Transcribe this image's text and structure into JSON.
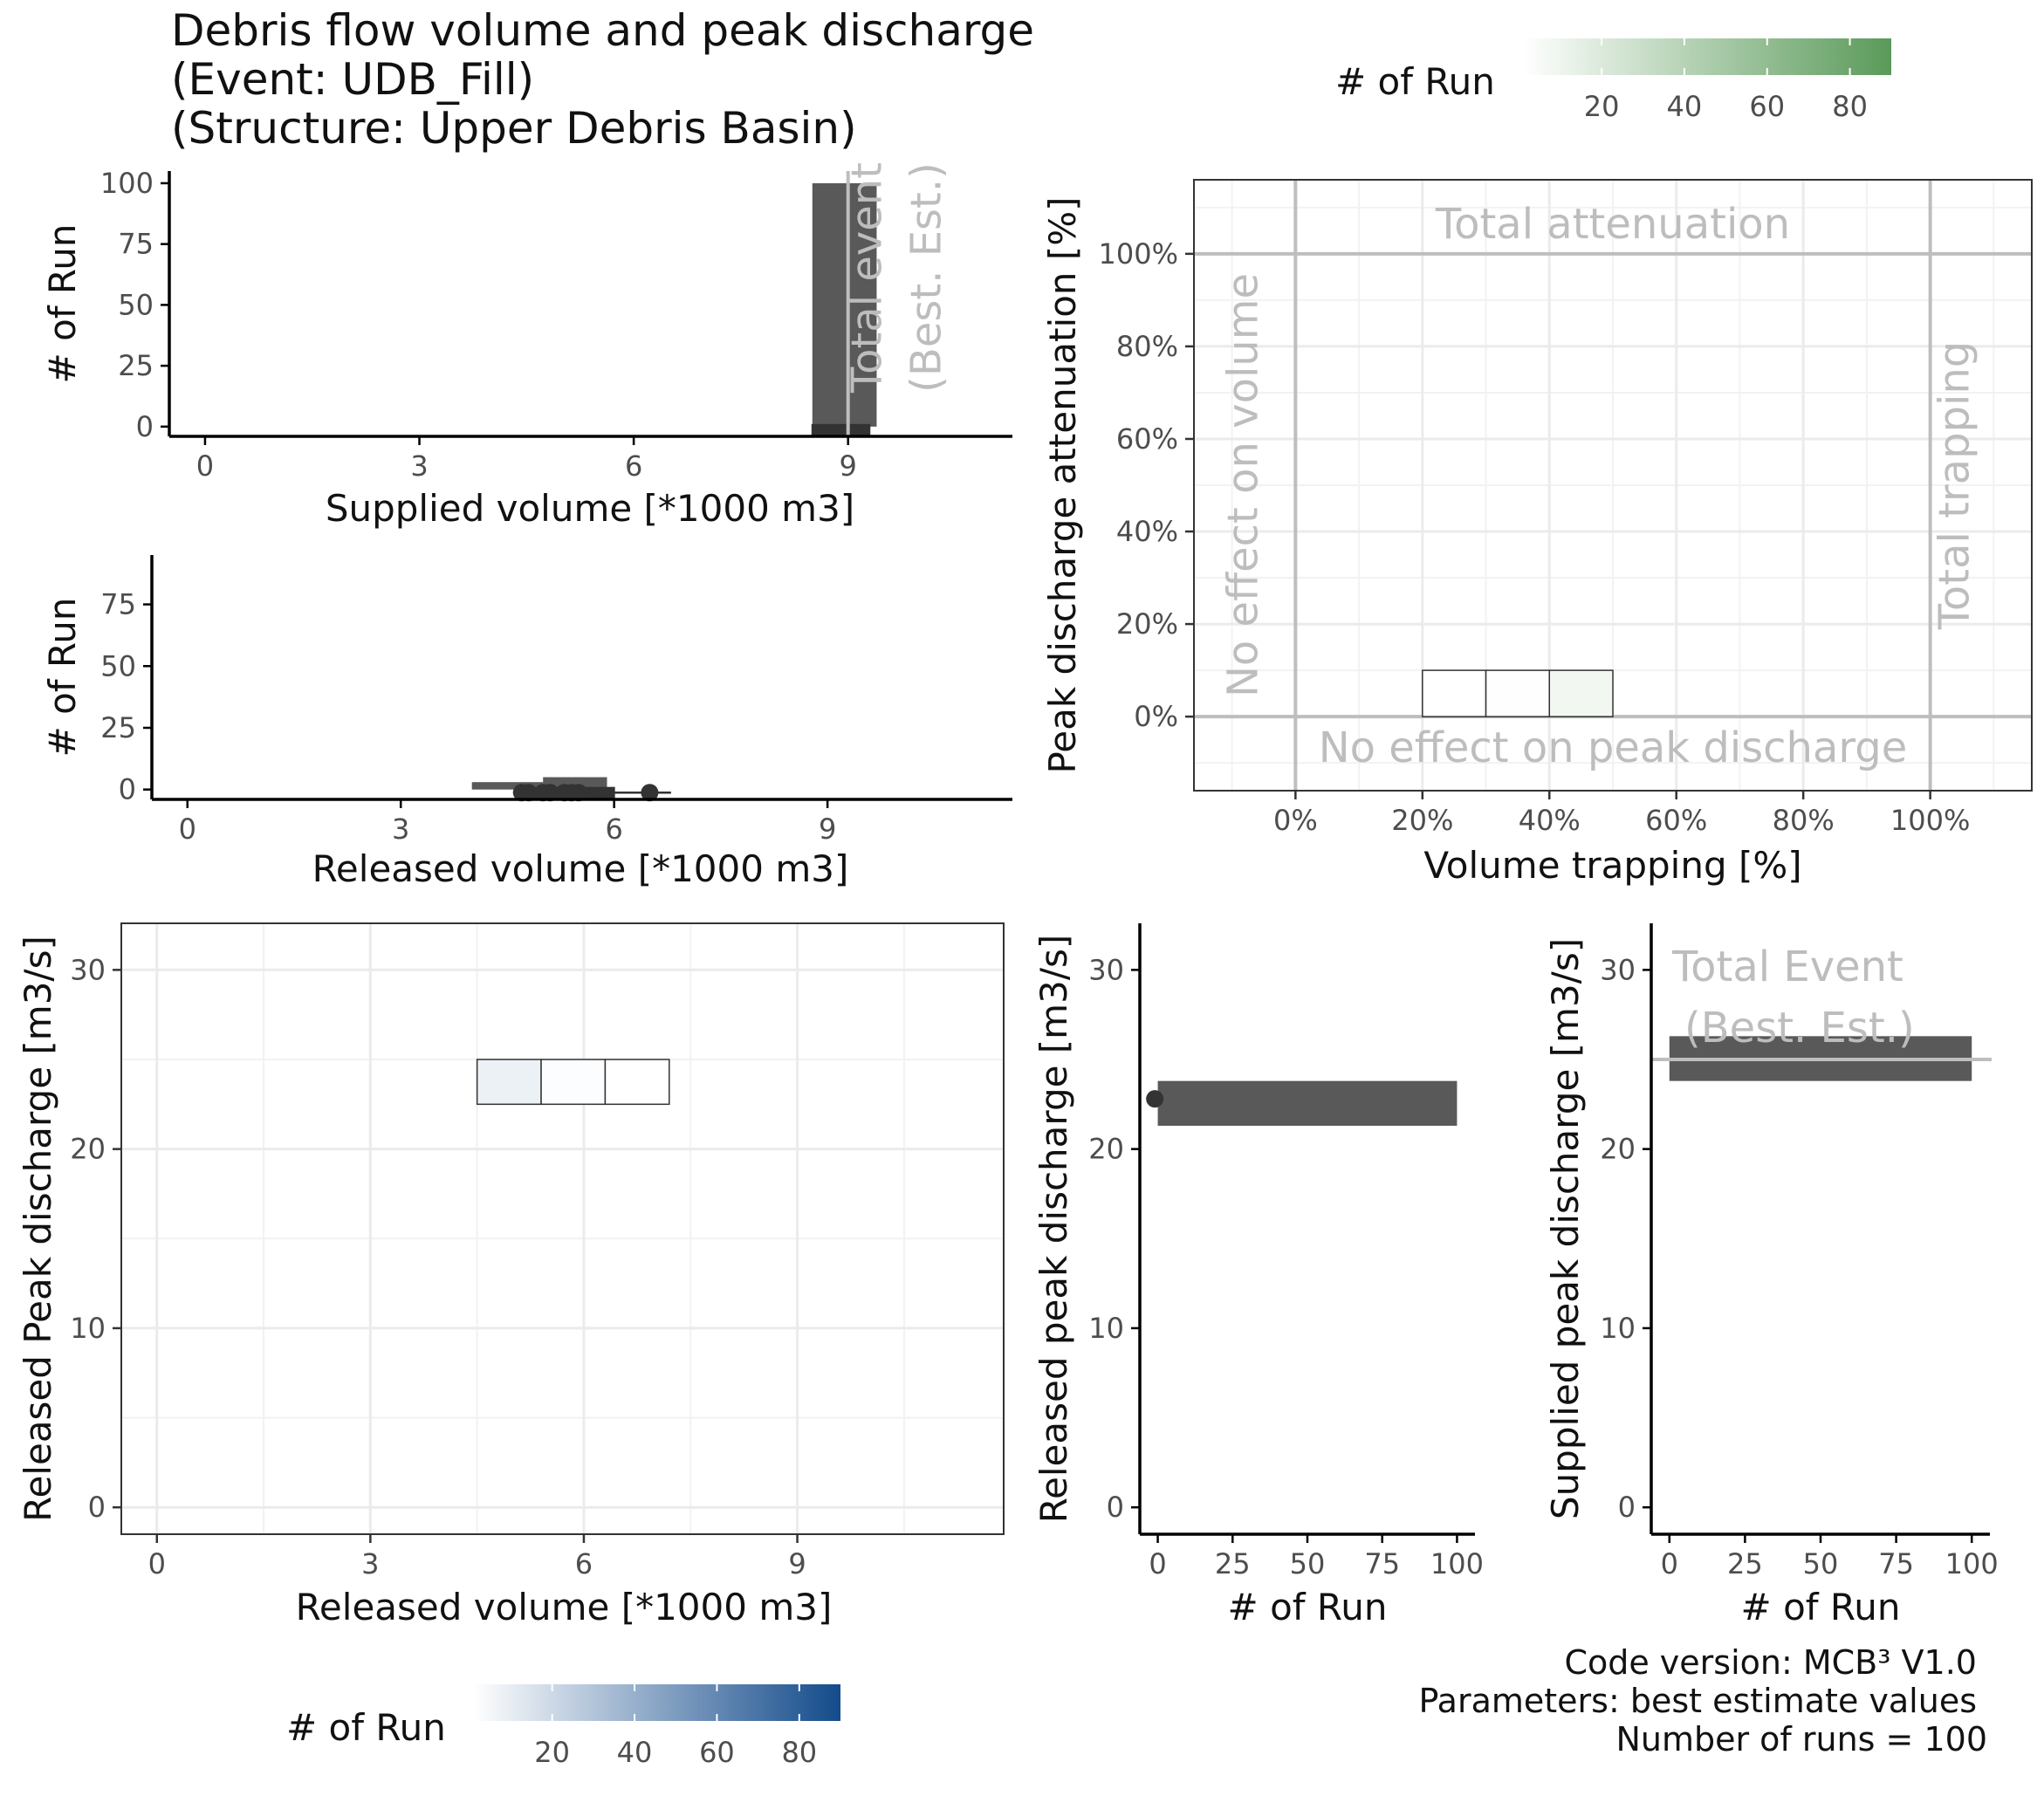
{
  "title": {
    "line1": "Debris flow volume and peak discharge",
    "line2": "(Event: UDB_Fill)",
    "line3": "(Structure: Upper Debris Basin)"
  },
  "caption": {
    "code_version": "Code version: MCB³ V1.0",
    "parameters": "Parameters:  best estimate values",
    "runs": "Number of runs = 100"
  },
  "colors": {
    "box": "#595959",
    "point": "#333333",
    "reference": "#bebebe",
    "grid": "#ebebeb",
    "green_high": "#5a9a5a",
    "blue_high": "#134b8b"
  },
  "chart_data": [
    {
      "id": "supplied_volume",
      "type": "boxplot",
      "orientation": "horizontal",
      "xlabel": "Supplied volume [*1000 m3]",
      "ylabel": "# of Run",
      "xlim": [
        -0.5,
        11.3
      ],
      "ylim": [
        -4,
        105
      ],
      "xticks": [
        "0",
        "3",
        "6",
        "9"
      ],
      "yticks": [
        "0",
        "25",
        "50",
        "75",
        "100"
      ],
      "histogram": [
        {
          "x_from": 8.5,
          "x_to": 9.4,
          "count": 100
        }
      ],
      "box": {
        "min": 8.5,
        "q1": 8.5,
        "median": 9.0,
        "q3": 9.3,
        "max": 9.3,
        "y_from": -2.5,
        "y_to": 0
      },
      "reference": {
        "x": 9.0,
        "label1": "Total event",
        "label2": "(Best. Est.)"
      }
    },
    {
      "id": "released_volume",
      "type": "boxplot",
      "orientation": "horizontal",
      "xlabel": "Released volume [*1000 m3]",
      "ylabel": "# of Run",
      "xlim": [
        -0.5,
        11.6
      ],
      "ylim": [
        -4,
        95
      ],
      "xticks": [
        "0",
        "3",
        "6",
        "9"
      ],
      "yticks": [
        "0",
        "25",
        "50",
        "75"
      ],
      "histogram": [
        {
          "x_from": 4.0,
          "x_to": 5.0,
          "count": 3
        },
        {
          "x_from": 5.0,
          "x_to": 5.9,
          "count": 5
        }
      ],
      "box": {
        "min": 4.7,
        "q1": 5.0,
        "median": 5.4,
        "q3": 6.0,
        "max": 6.8,
        "y_from": -2.5,
        "y_to": 0
      },
      "outliers": [
        4.7,
        4.8,
        5.0,
        5.1,
        5.3,
        5.4,
        5.5,
        6.5
      ]
    },
    {
      "id": "trapping_attenuation",
      "type": "heatmap",
      "xlabel": "Volume trapping [%]",
      "ylabel": "Peak discharge attenuation [%]",
      "xlim": [
        -16,
        116
      ],
      "ylim": [
        -16,
        116
      ],
      "xticks": [
        "0%",
        "20%",
        "40%",
        "60%",
        "80%",
        "100%"
      ],
      "yticks": [
        "0%",
        "20%",
        "40%",
        "60%",
        "80%",
        "100%"
      ],
      "cells": [
        {
          "x_from": 20,
          "x_to": 30,
          "y_from": 0,
          "y_to": 10,
          "count": 1
        },
        {
          "x_from": 30,
          "x_to": 40,
          "y_from": 0,
          "y_to": 10,
          "count": 2
        },
        {
          "x_from": 40,
          "x_to": 50,
          "y_from": 0,
          "y_to": 10,
          "count": 8
        }
      ],
      "reference_lines": {
        "x": [
          0,
          100
        ],
        "y": [
          0,
          100
        ]
      },
      "annotations": [
        "Total attenuation",
        "No effect on volume",
        "Total trapping",
        "No effect on peak discharge"
      ],
      "legend": {
        "title": "# of Run",
        "ticks": [
          "20",
          "40",
          "60",
          "80"
        ],
        "range": [
          1,
          90
        ],
        "position": "top"
      }
    },
    {
      "id": "volume_vs_peak",
      "type": "heatmap",
      "xlabel": "Released volume [*1000 m3]",
      "ylabel": "Released Peak discharge [m3/s]",
      "xlim": [
        -0.5,
        11.9
      ],
      "ylim": [
        -1.5,
        32.6
      ],
      "xticks": [
        "0",
        "3",
        "6",
        "9"
      ],
      "yticks": [
        "0",
        "10",
        "20",
        "30"
      ],
      "cells": [
        {
          "x_from": 4.5,
          "x_to": 5.4,
          "y_from": 22.5,
          "y_to": 25,
          "count": 8
        },
        {
          "x_from": 5.4,
          "x_to": 6.3,
          "y_from": 22.5,
          "y_to": 25,
          "count": 2
        },
        {
          "x_from": 6.3,
          "x_to": 7.2,
          "y_from": 22.5,
          "y_to": 25,
          "count": 1
        }
      ],
      "legend": {
        "title": "# of Run",
        "ticks": [
          "20",
          "40",
          "60",
          "80"
        ],
        "range": [
          1,
          90
        ],
        "position": "bottom"
      }
    },
    {
      "id": "released_peak",
      "type": "boxplot",
      "orientation": "vertical",
      "xlabel": "# of Run",
      "ylabel": "Released peak discharge [m3/s]",
      "xlim": [
        -6,
        106
      ],
      "ylim": [
        -1.5,
        32.6
      ],
      "xticks": [
        "0",
        "25",
        "50",
        "75",
        "100"
      ],
      "yticks": [
        "0",
        "10",
        "20",
        "30"
      ],
      "histogram": [
        {
          "y_from": 21.3,
          "y_to": 23.8,
          "count": 100
        }
      ],
      "outliers": [
        22.8
      ]
    },
    {
      "id": "supplied_peak",
      "type": "boxplot",
      "orientation": "vertical",
      "xlabel": "# of Run",
      "ylabel": "Supplied peak discharge [m3/s]",
      "xlim": [
        -6,
        106
      ],
      "ylim": [
        -1.5,
        32.6
      ],
      "xticks": [
        "0",
        "25",
        "50",
        "75",
        "100"
      ],
      "yticks": [
        "0",
        "10",
        "20",
        "30"
      ],
      "histogram": [
        {
          "y_from": 23.8,
          "y_to": 26.3,
          "count": 100
        }
      ],
      "reference": {
        "y": 25.0,
        "label1": "Total Event",
        "label2": "(Best. Est.)"
      }
    }
  ]
}
